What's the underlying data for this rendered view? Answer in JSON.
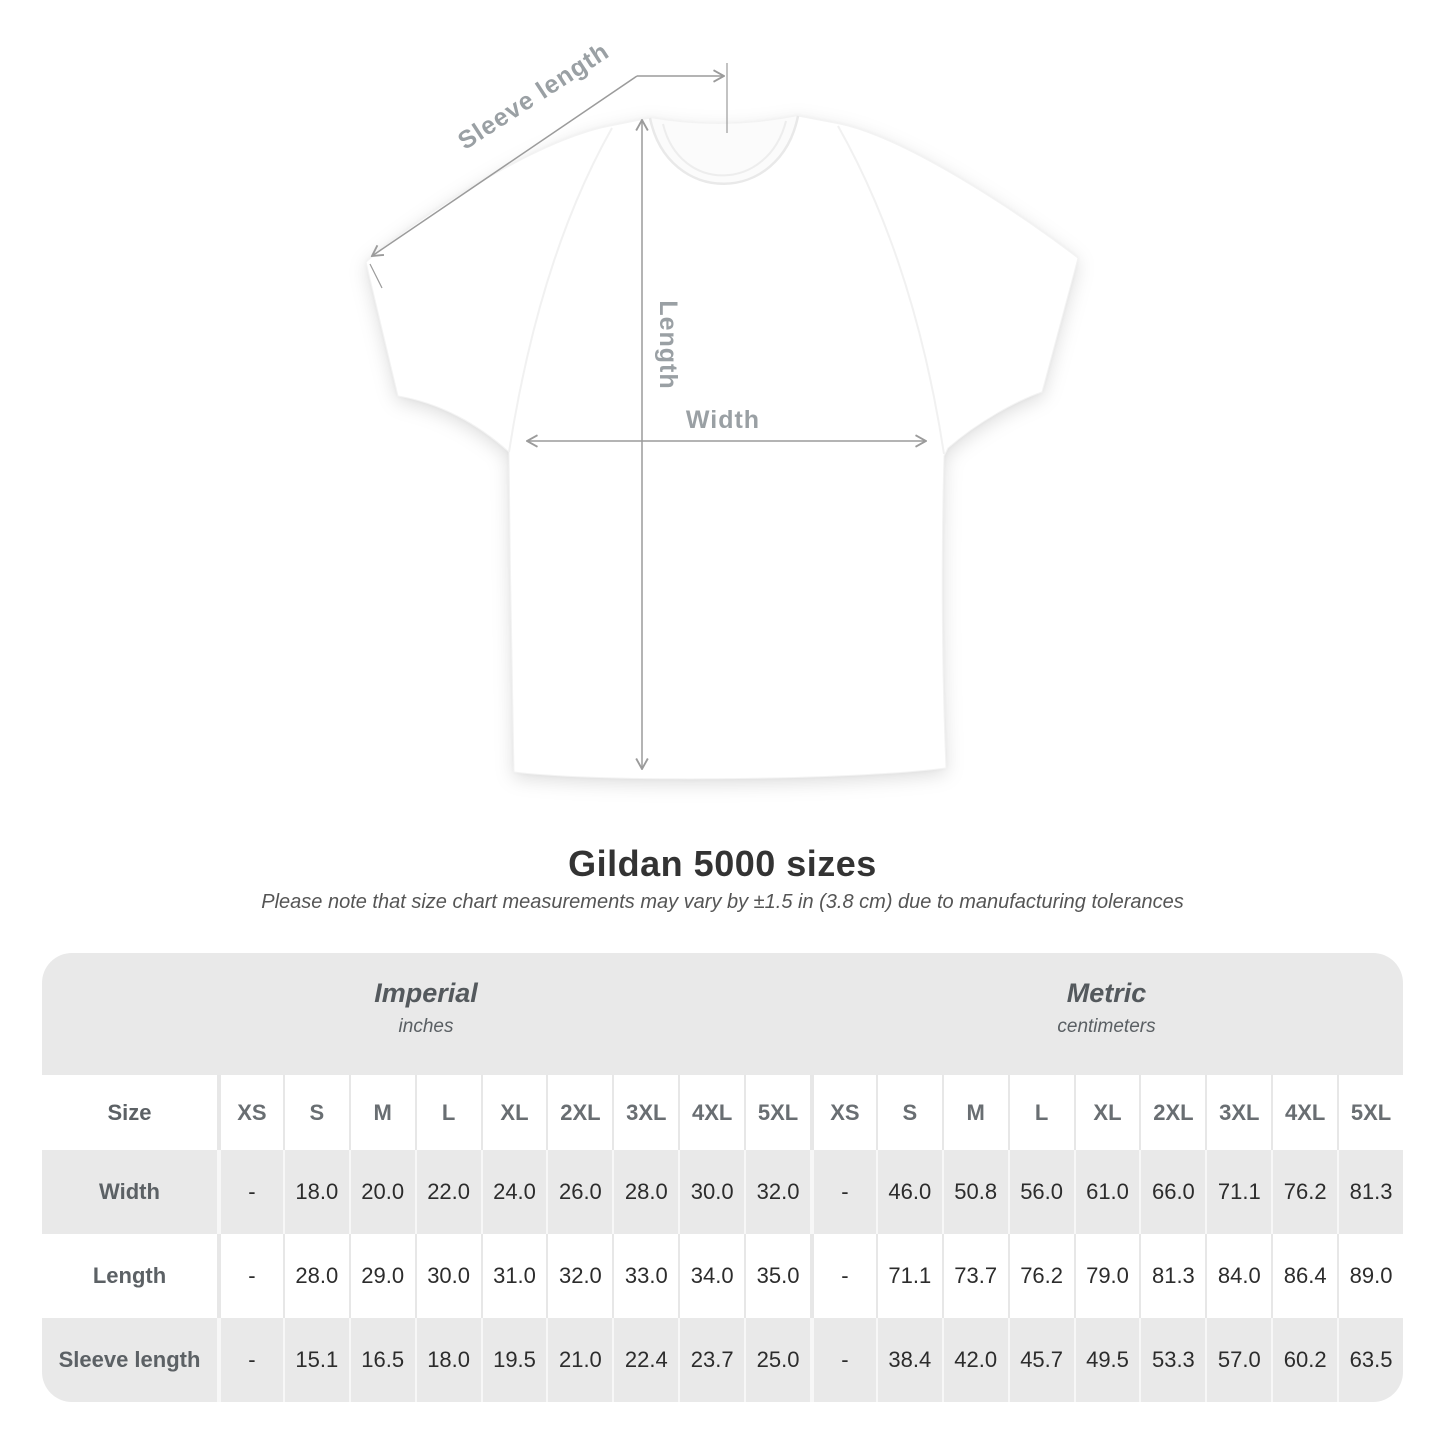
{
  "title": "Gildan 5000 sizes",
  "subtitle": "Please note that size chart measurements may vary by ±1.5 in (3.8 cm) due to manufacturing tolerances",
  "diagram": {
    "sleeve_length_label": "Sleeve length",
    "length_label": "Length",
    "width_label": "Width"
  },
  "colors": {
    "band_gray": "#e9e9e9",
    "annotation_gray": "#9aa0a4",
    "value_text": "#2c2c2c",
    "label_text": "#5c6165"
  },
  "chart_data": {
    "type": "table",
    "title": "Gildan 5000 sizes",
    "note": "Please note that size chart measurements may vary by ±1.5 in (3.8 cm) due to manufacturing tolerances",
    "size_header": "Size",
    "sizes": [
      "XS",
      "S",
      "M",
      "L",
      "XL",
      "2XL",
      "3XL",
      "4XL",
      "5XL"
    ],
    "groups": [
      {
        "name": "Imperial",
        "unit": "inches"
      },
      {
        "name": "Metric",
        "unit": "centimeters"
      }
    ],
    "rows": [
      {
        "label": "Width",
        "imperial": [
          "-",
          "18.0",
          "20.0",
          "22.0",
          "24.0",
          "26.0",
          "28.0",
          "30.0",
          "32.0"
        ],
        "metric": [
          "-",
          "46.0",
          "50.8",
          "56.0",
          "61.0",
          "66.0",
          "71.1",
          "76.2",
          "81.3"
        ]
      },
      {
        "label": "Length",
        "imperial": [
          "-",
          "28.0",
          "29.0",
          "30.0",
          "31.0",
          "32.0",
          "33.0",
          "34.0",
          "35.0"
        ],
        "metric": [
          "-",
          "71.1",
          "73.7",
          "76.2",
          "79.0",
          "81.3",
          "84.0",
          "86.4",
          "89.0"
        ]
      },
      {
        "label": "Sleeve length",
        "imperial": [
          "-",
          "15.1",
          "16.5",
          "18.0",
          "19.5",
          "21.0",
          "22.4",
          "23.7",
          "25.0"
        ],
        "metric": [
          "-",
          "38.4",
          "42.0",
          "45.7",
          "49.5",
          "53.3",
          "57.0",
          "60.2",
          "63.5"
        ]
      }
    ]
  }
}
